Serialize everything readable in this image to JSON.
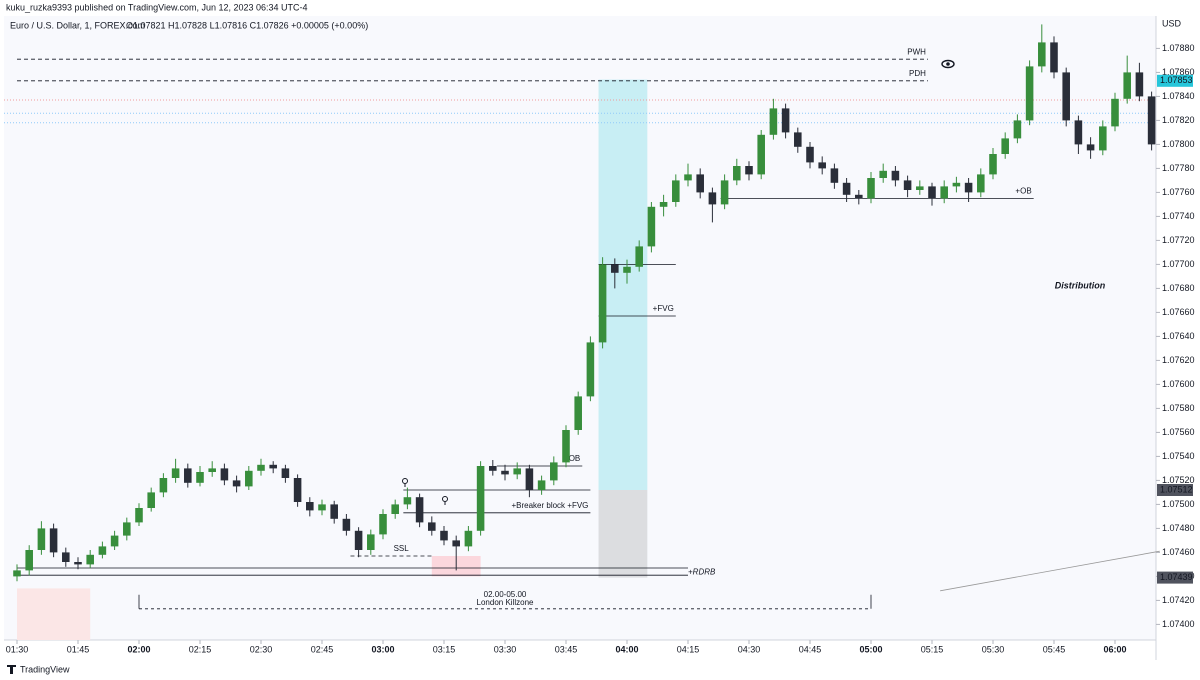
{
  "chart_data": {
    "type": "candlestick",
    "header": "kuku_ruzka9393 published on TradingView.com, Jun 12, 2023 06:34 UTC-4",
    "symbol": "Euro / U.S. Dollar, 1, FOREX.com",
    "ohlc_text": "O1.07821 H1.07828 L1.07816 C1.07826 +0.00005 (+0.00%)",
    "currency": "USD",
    "footer": "TradingView",
    "bull_color": "#388e3c",
    "bear_color": "#2a2e39",
    "x": [
      "01:30",
      "01:33",
      "01:36",
      "01:39",
      "01:42",
      "01:45",
      "01:48",
      "01:51",
      "01:54",
      "01:57",
      "02:00",
      "02:03",
      "02:06",
      "02:09",
      "02:12",
      "02:15",
      "02:18",
      "02:21",
      "02:24",
      "02:27",
      "02:30",
      "02:33",
      "02:36",
      "02:39",
      "02:42",
      "02:45",
      "02:48",
      "02:51",
      "02:54",
      "02:57",
      "03:00",
      "03:03",
      "03:06",
      "03:09",
      "03:12",
      "03:15",
      "03:18",
      "03:21",
      "03:24",
      "03:27",
      "03:30",
      "03:33",
      "03:36",
      "03:39",
      "03:42",
      "03:45",
      "03:48",
      "03:51",
      "03:54",
      "03:57",
      "04:00",
      "04:03",
      "04:06",
      "04:09",
      "04:12",
      "04:15",
      "04:18",
      "04:21",
      "04:24",
      "04:27",
      "04:30",
      "04:33",
      "04:36",
      "04:39",
      "04:42",
      "04:45",
      "04:48",
      "04:51",
      "04:54",
      "04:57",
      "05:00",
      "05:03",
      "05:06",
      "05:09",
      "05:12",
      "05:15",
      "05:18",
      "05:21",
      "05:24",
      "05:27",
      "05:30",
      "05:33",
      "05:36",
      "05:39",
      "05:42",
      "05:45",
      "05:48",
      "05:51",
      "05:54",
      "05:57",
      "06:00",
      "06:03",
      "06:06",
      "06:09"
    ],
    "ohlc": [
      [
        1.0744,
        1.0745,
        1.07436,
        1.07445
      ],
      [
        1.07445,
        1.07466,
        1.07441,
        1.07462
      ],
      [
        1.07462,
        1.07486,
        1.07458,
        1.0748
      ],
      [
        1.0748,
        1.07484,
        1.07456,
        1.0746
      ],
      [
        1.0746,
        1.07464,
        1.07448,
        1.07452
      ],
      [
        1.07452,
        1.07456,
        1.07446,
        1.0745
      ],
      [
        1.0745,
        1.07462,
        1.07447,
        1.07458
      ],
      [
        1.07458,
        1.07469,
        1.07455,
        1.07465
      ],
      [
        1.07465,
        1.07478,
        1.07462,
        1.07474
      ],
      [
        1.07474,
        1.07489,
        1.0747,
        1.07485
      ],
      [
        1.07485,
        1.07501,
        1.07482,
        1.07497
      ],
      [
        1.07497,
        1.07514,
        1.07494,
        1.0751
      ],
      [
        1.0751,
        1.07526,
        1.07506,
        1.07522
      ],
      [
        1.07522,
        1.07538,
        1.07518,
        1.0753
      ],
      [
        1.0753,
        1.07534,
        1.07514,
        1.07518
      ],
      [
        1.07518,
        1.07532,
        1.07515,
        1.07527
      ],
      [
        1.07527,
        1.07536,
        1.07523,
        1.0753
      ],
      [
        1.0753,
        1.07534,
        1.07516,
        1.0752
      ],
      [
        1.0752,
        1.07524,
        1.0751,
        1.07515
      ],
      [
        1.07515,
        1.07532,
        1.07512,
        1.07528
      ],
      [
        1.07528,
        1.07538,
        1.07524,
        1.07533
      ],
      [
        1.07533,
        1.07536,
        1.07526,
        1.0753
      ],
      [
        1.0753,
        1.07533,
        1.07518,
        1.07522
      ],
      [
        1.07522,
        1.07525,
        1.07498,
        1.07502
      ],
      [
        1.07502,
        1.07506,
        1.0749,
        1.07495
      ],
      [
        1.07495,
        1.07504,
        1.07491,
        1.075
      ],
      [
        1.075,
        1.07503,
        1.07484,
        1.07488
      ],
      [
        1.07488,
        1.07492,
        1.07474,
        1.07478
      ],
      [
        1.07478,
        1.07481,
        1.07456,
        1.07462
      ],
      [
        1.07462,
        1.07479,
        1.07458,
        1.07475
      ],
      [
        1.07475,
        1.07496,
        1.07471,
        1.07492
      ],
      [
        1.07492,
        1.07504,
        1.07488,
        1.075
      ],
      [
        1.075,
        1.07514,
        1.07496,
        1.07506
      ],
      [
        1.07506,
        1.07509,
        1.07481,
        1.07485
      ],
      [
        1.07485,
        1.0749,
        1.07474,
        1.07478
      ],
      [
        1.07478,
        1.07482,
        1.07466,
        1.0747
      ],
      [
        1.0747,
        1.07474,
        1.07445,
        1.07465
      ],
      [
        1.07465,
        1.07482,
        1.07461,
        1.07478
      ],
      [
        1.07478,
        1.07536,
        1.07474,
        1.07532
      ],
      [
        1.07532,
        1.07537,
        1.07524,
        1.07528
      ],
      [
        1.07528,
        1.07533,
        1.0752,
        1.07525
      ],
      [
        1.07525,
        1.07535,
        1.07521,
        1.0753
      ],
      [
        1.0753,
        1.07533,
        1.07506,
        1.07512
      ],
      [
        1.07512,
        1.07524,
        1.07508,
        1.0752
      ],
      [
        1.0752,
        1.0754,
        1.07516,
        1.07535
      ],
      [
        1.07535,
        1.07566,
        1.07531,
        1.07562
      ],
      [
        1.07562,
        1.07594,
        1.07558,
        1.0759
      ],
      [
        1.0759,
        1.0764,
        1.07586,
        1.07635
      ],
      [
        1.07635,
        1.07706,
        1.0763,
        1.077
      ],
      [
        1.077,
        1.07705,
        1.0768,
        1.07693
      ],
      [
        1.07693,
        1.07704,
        1.07684,
        1.07698
      ],
      [
        1.07698,
        1.0772,
        1.07694,
        1.07715
      ],
      [
        1.07715,
        1.07752,
        1.0771,
        1.07748
      ],
      [
        1.07748,
        1.07758,
        1.0774,
        1.07752
      ],
      [
        1.07752,
        1.07775,
        1.07748,
        1.0777
      ],
      [
        1.0777,
        1.07784,
        1.07765,
        1.07775
      ],
      [
        1.07775,
        1.0778,
        1.07755,
        1.0776
      ],
      [
        1.0776,
        1.07764,
        1.07735,
        1.0775
      ],
      [
        1.0775,
        1.07775,
        1.07746,
        1.0777
      ],
      [
        1.0777,
        1.07788,
        1.07766,
        1.07782
      ],
      [
        1.07782,
        1.07786,
        1.0777,
        1.07775
      ],
      [
        1.07775,
        1.07812,
        1.07771,
        1.07808
      ],
      [
        1.07808,
        1.07838,
        1.07804,
        1.0783
      ],
      [
        1.0783,
        1.07834,
        1.07805,
        1.0781
      ],
      [
        1.0781,
        1.07814,
        1.07793,
        1.07798
      ],
      [
        1.07798,
        1.07802,
        1.0778,
        1.07785
      ],
      [
        1.07785,
        1.0779,
        1.07775,
        1.0778
      ],
      [
        1.0778,
        1.07784,
        1.07763,
        1.07768
      ],
      [
        1.07768,
        1.07772,
        1.07752,
        1.07758
      ],
      [
        1.07758,
        1.07762,
        1.0775,
        1.07755
      ],
      [
        1.07755,
        1.07777,
        1.07751,
        1.07772
      ],
      [
        1.07772,
        1.07784,
        1.07768,
        1.07778
      ],
      [
        1.07778,
        1.07782,
        1.07765,
        1.0777
      ],
      [
        1.0777,
        1.07774,
        1.07756,
        1.07762
      ],
      [
        1.07762,
        1.0777,
        1.07758,
        1.07765
      ],
      [
        1.07765,
        1.07768,
        1.07749,
        1.07755
      ],
      [
        1.07755,
        1.0777,
        1.07751,
        1.07765
      ],
      [
        1.07765,
        1.07773,
        1.0776,
        1.07768
      ],
      [
        1.07768,
        1.07772,
        1.07752,
        1.0776
      ],
      [
        1.0776,
        1.0778,
        1.07756,
        1.07775
      ],
      [
        1.07775,
        1.07797,
        1.07771,
        1.07792
      ],
      [
        1.07792,
        1.0781,
        1.07788,
        1.07805
      ],
      [
        1.07805,
        1.07825,
        1.07801,
        1.0782
      ],
      [
        1.0782,
        1.0787,
        1.07816,
        1.07865
      ],
      [
        1.07865,
        1.079,
        1.0786,
        1.07885
      ],
      [
        1.07885,
        1.0789,
        1.07855,
        1.0786
      ],
      [
        1.0786,
        1.07864,
        1.07815,
        1.0782
      ],
      [
        1.0782,
        1.07824,
        1.07792,
        1.078
      ],
      [
        1.078,
        1.07806,
        1.07788,
        1.07795
      ],
      [
        1.07795,
        1.0782,
        1.07791,
        1.07815
      ],
      [
        1.07815,
        1.07843,
        1.07811,
        1.07838
      ],
      [
        1.07838,
        1.07874,
        1.07834,
        1.0786
      ],
      [
        1.0786,
        1.07868,
        1.07836,
        1.0784
      ],
      [
        1.0784,
        1.07844,
        1.07795,
        1.078
      ]
    ],
    "ylim": [
      1.07387,
      1.07907
    ],
    "yticks": [
      {
        "value": 1.074,
        "label": "1.07400"
      },
      {
        "value": 1.0742,
        "label": "1.07420"
      },
      {
        "value": 1.0744,
        "label": "1.07440"
      },
      {
        "value": 1.0746,
        "label": "1.07460"
      },
      {
        "value": 1.0748,
        "label": "1.07480"
      },
      {
        "value": 1.075,
        "label": "1.07500"
      },
      {
        "value": 1.0752,
        "label": "1.07520"
      },
      {
        "value": 1.0754,
        "label": "1.07540"
      },
      {
        "value": 1.0756,
        "label": "1.07560"
      },
      {
        "value": 1.0758,
        "label": "1.07580"
      },
      {
        "value": 1.076,
        "label": "1.07600"
      },
      {
        "value": 1.0762,
        "label": "1.07620"
      },
      {
        "value": 1.0764,
        "label": "1.07640"
      },
      {
        "value": 1.0766,
        "label": "1.07660"
      },
      {
        "value": 1.0768,
        "label": "1.07680"
      },
      {
        "value": 1.077,
        "label": "1.07700"
      },
      {
        "value": 1.0772,
        "label": "1.07720"
      },
      {
        "value": 1.0774,
        "label": "1.07740"
      },
      {
        "value": 1.0776,
        "label": "1.07760"
      },
      {
        "value": 1.0778,
        "label": "1.07780"
      },
      {
        "value": 1.078,
        "label": "1.07800"
      },
      {
        "value": 1.0782,
        "label": "1.07820"
      },
      {
        "value": 1.0784,
        "label": "1.07840"
      },
      {
        "value": 1.0786,
        "label": "1.07860"
      },
      {
        "value": 1.0788,
        "label": "1.07880"
      }
    ],
    "xticks": [
      "01:30",
      "01:45",
      "02:00",
      "02:15",
      "02:30",
      "02:45",
      "03:00",
      "03:15",
      "03:30",
      "03:45",
      "04:00",
      "04:15",
      "04:30",
      "04:45",
      "05:00",
      "05:15",
      "05:30",
      "05:45",
      "06:00"
    ],
    "price_labels": [
      {
        "value": 1.07853,
        "color": "#26c6da"
      },
      {
        "value": 1.07512,
        "color": "#50535e"
      },
      {
        "value": 1.07439,
        "color": "#50535e"
      }
    ],
    "boxes": [
      {
        "from": "03:53",
        "to": "04:05",
        "top": 1.07854,
        "bottom": 1.07512,
        "color": "#c8eef4"
      },
      {
        "from": "03:53",
        "to": "04:05",
        "top": 1.07512,
        "bottom": 1.07439,
        "color": "#dcdde0"
      },
      {
        "from": "03:12",
        "to": "03:24",
        "top": 1.07457,
        "bottom": 1.0744,
        "color": "#fbd7dd"
      },
      {
        "from": "01:30",
        "to": "01:48",
        "top": 1.0743,
        "bottom": 1.07387,
        "color": "#fbe6e6"
      }
    ],
    "dotted_levels": [
      {
        "price": 1.07837,
        "color": "#ef9a9a"
      },
      {
        "price": 1.07826,
        "color": "#90caf9"
      },
      {
        "price": 1.07818,
        "color": "#90caf9"
      }
    ],
    "levels": [
      {
        "label": "PWH",
        "price": 1.07871,
        "from": "01:30",
        "to": "05:14",
        "dash": true
      },
      {
        "label": "PDH",
        "price": 1.07853,
        "from": "01:30",
        "to": "05:14",
        "dash": true
      },
      {
        "label": "+OB",
        "price": 1.07755,
        "from": "04:23",
        "to": "05:40",
        "dash": false
      },
      {
        "price": 1.077,
        "from": "03:53",
        "to": "04:12",
        "dash": false
      },
      {
        "label": "+FVG",
        "price": 1.07657,
        "from": "03:53",
        "to": "04:12",
        "dash": false
      },
      {
        "label": "+OB",
        "price": 1.07532,
        "from": "03:28",
        "to": "03:49",
        "dash": false
      },
      {
        "price": 1.07512,
        "from": "03:05",
        "to": "03:51",
        "dash": false
      },
      {
        "label": "+Breaker block +FVG",
        "price": 1.07493,
        "from": "03:05",
        "to": "03:51",
        "dash": false
      },
      {
        "label": "SSL",
        "price": 1.07457,
        "from": "02:52",
        "to": "03:12",
        "dash": true
      },
      {
        "price": 1.07447,
        "from": "01:30",
        "to": "04:15",
        "dash": false
      },
      {
        "label": "+RDRB",
        "price": 1.07441,
        "from": "01:30",
        "to": "04:15",
        "dash": false
      }
    ],
    "killzone": {
      "range_label": "02.00-05.00",
      "label": "London Killzone",
      "from": "02:00",
      "to": "05:00",
      "price": 1.07413
    },
    "trendline": {
      "from": "05:17",
      "to": "06:11",
      "start": 1.07428,
      "end": 1.07461
    },
    "note": "Distribution"
  }
}
